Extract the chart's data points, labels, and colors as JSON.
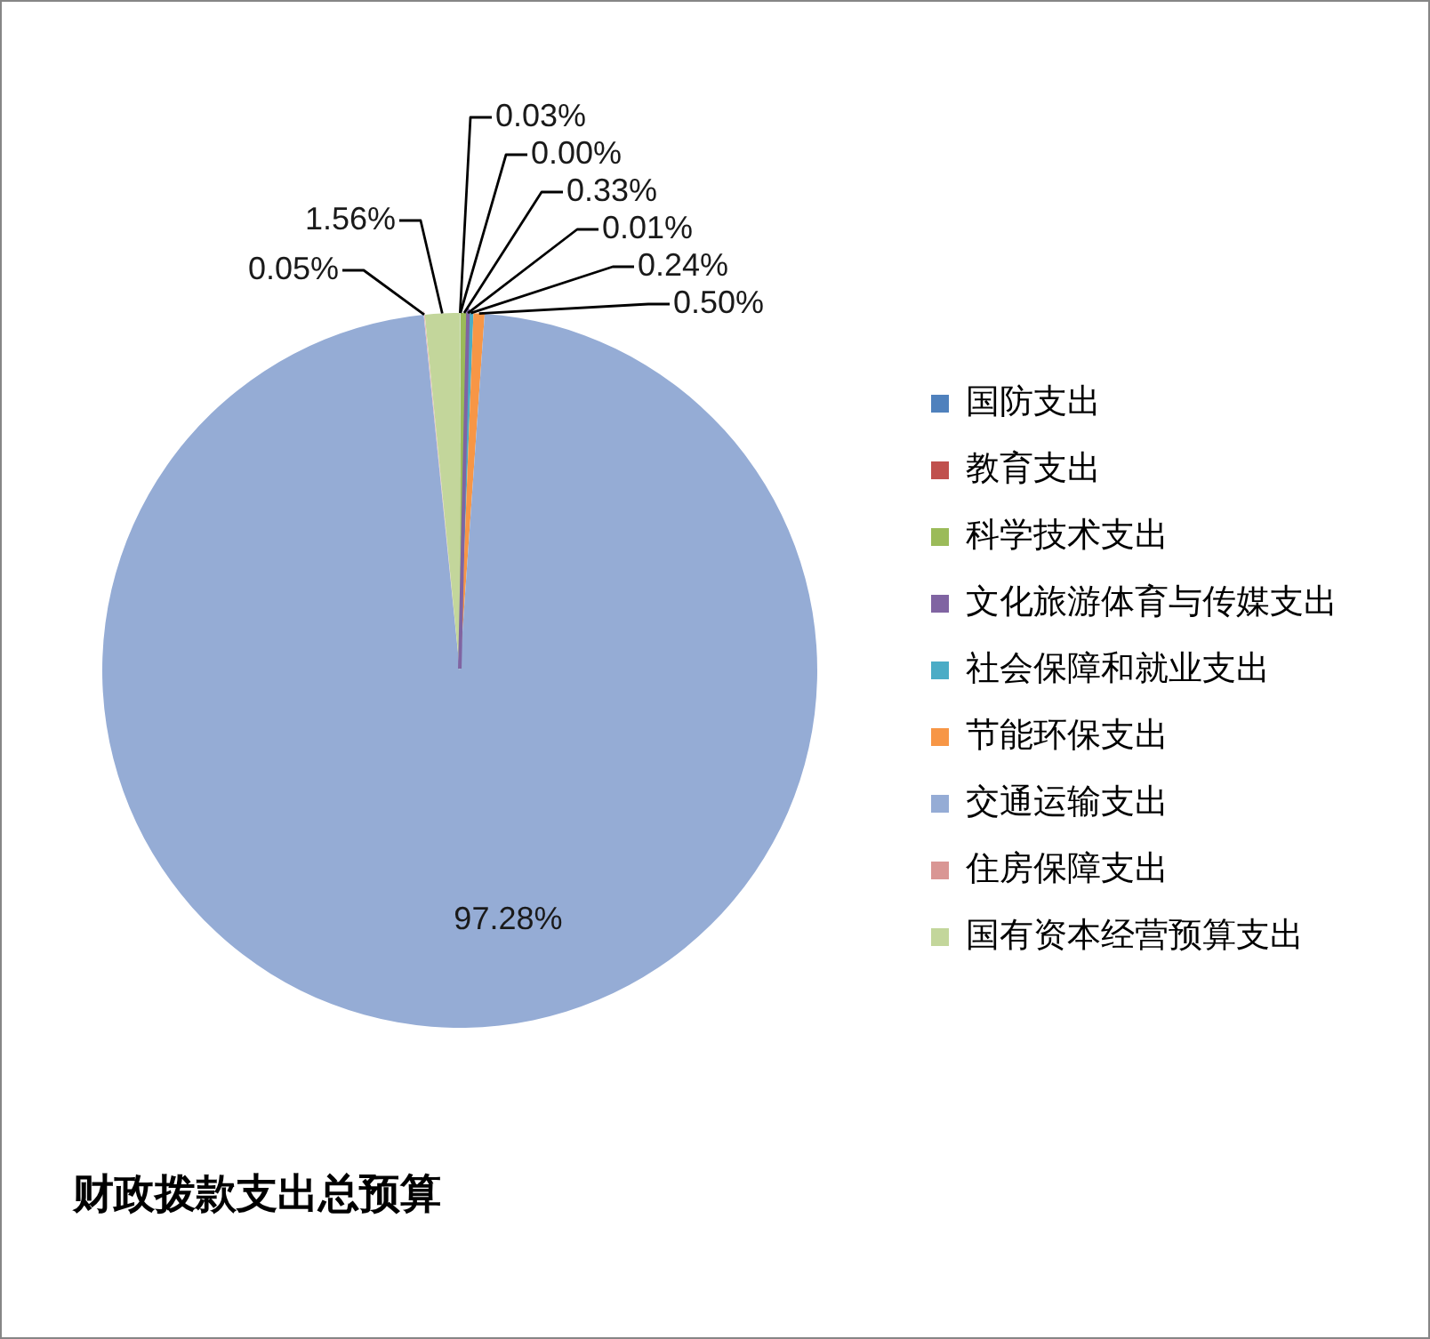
{
  "chart_data": {
    "type": "pie",
    "title": "财政拨款支出总预算",
    "categories": [
      "国防支出",
      "教育支出",
      "科学技术支出",
      "文化旅游体育与传媒支出",
      "社会保障和就业支出",
      "节能环保支出",
      "交通运输支出",
      "住房保障支出",
      "国有资本经营预算支出"
    ],
    "values": [
      0.03,
      0,
      0.33,
      0.01,
      0.24,
      0.5,
      97.28,
      0.05,
      1.56
    ],
    "value_labels": [
      "0.03%",
      "0.00%",
      "0.33%",
      "0.01%",
      "0.24%",
      "0.50%",
      "97.28%",
      "0.05%",
      "1.56%"
    ],
    "colors": [
      "#4f81bd",
      "#c0504d",
      "#9bbb59",
      "#8064a2",
      "#4bacc6",
      "#f79646",
      "#95acd5",
      "#d99694",
      "#c3d69b"
    ],
    "legend": "right"
  }
}
